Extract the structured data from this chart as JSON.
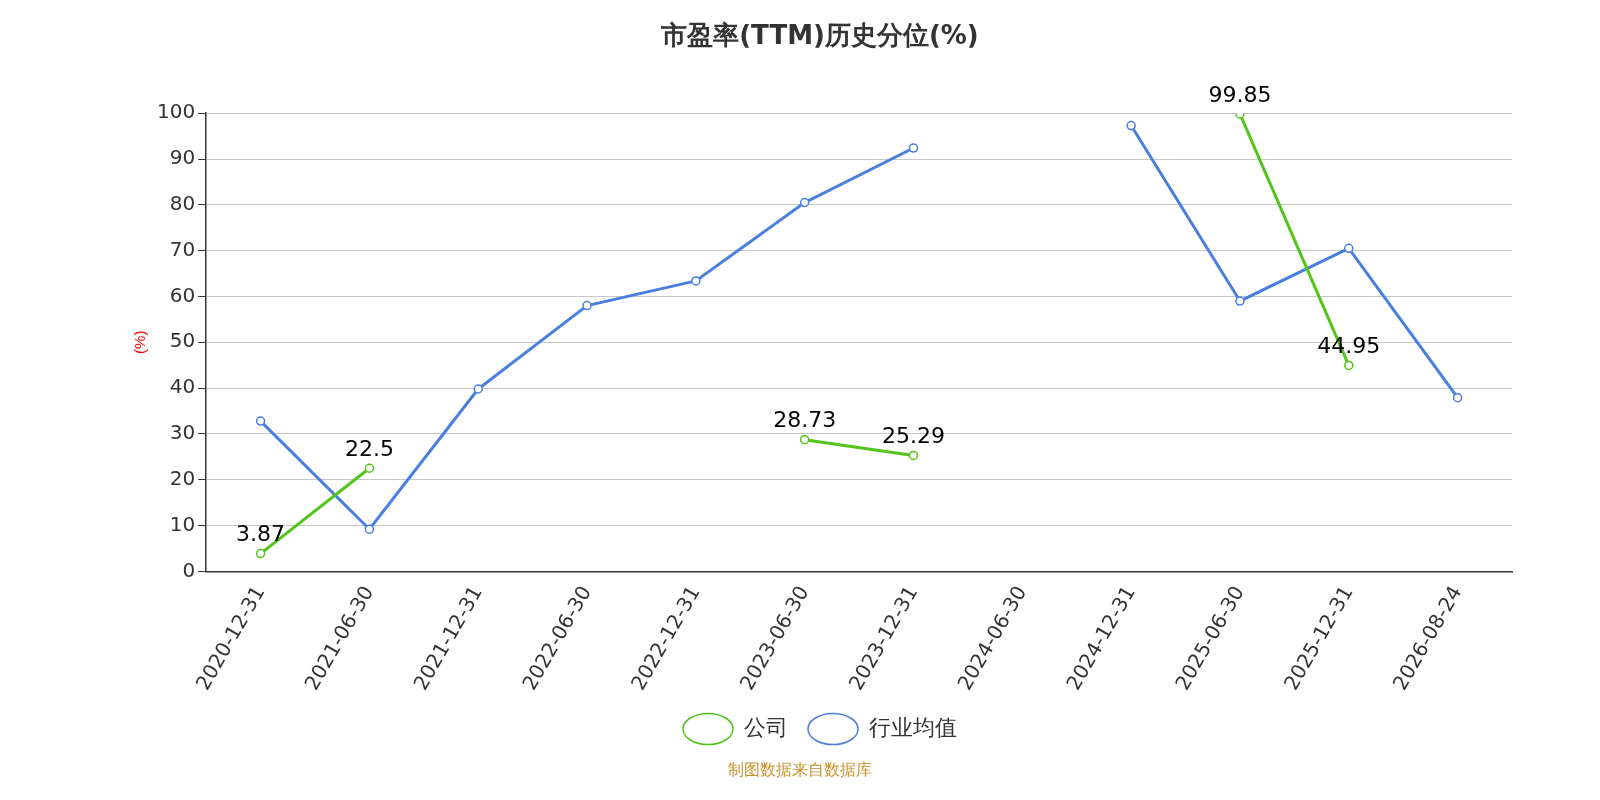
{
  "chart_data": {
    "type": "line",
    "title": "市盈率(TTM)历史分位(%)",
    "ylabel": "(%)",
    "categories": [
      "2020-12-31",
      "2021-06-30",
      "2021-12-31",
      "2022-06-30",
      "2022-12-31",
      "2023-06-30",
      "2023-12-31",
      "2024-06-30",
      "2024-12-31",
      "2025-06-30",
      "2025-12-31",
      "2026-08-24"
    ],
    "series": [
      {
        "name": "公司",
        "color": "#52c41a",
        "values": [
          3.87,
          22.5,
          null,
          null,
          null,
          28.73,
          25.29,
          null,
          null,
          99.85,
          44.95,
          null
        ],
        "value_labels": [
          "3.87",
          "22.5",
          null,
          null,
          null,
          "28.73",
          "25.29",
          null,
          null,
          "99.85",
          "44.95",
          null
        ]
      },
      {
        "name": "行业均值",
        "color": "#4a7fe0",
        "values": [
          32.8,
          9.2,
          39.8,
          58,
          63.4,
          80.5,
          92.4,
          null,
          97.3,
          59,
          70.5,
          37.9
        ]
      }
    ],
    "ylim": [
      0,
      100
    ],
    "yticks": [
      0,
      10,
      20,
      30,
      40,
      50,
      60,
      70,
      80,
      90,
      100
    ],
    "grid": "y",
    "legend": "bottom",
    "marker": "circle",
    "line_style": "solid",
    "annotations": [
      "制图数据来自数据库"
    ]
  }
}
